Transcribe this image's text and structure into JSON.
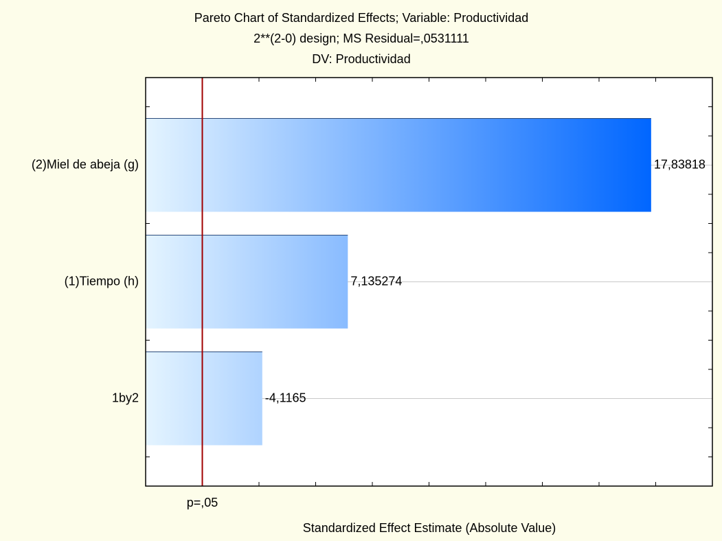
{
  "chart_data": {
    "type": "pareto",
    "title_lines": [
      "Pareto Chart of Standardized Effects; Variable: Productividad",
      "2**(2-0) design; MS Residual=,0531111",
      "DV: Productividad"
    ],
    "x_label": "Standardized Effect Estimate (Absolute Value)",
    "categories": [
      "(2)Miel de abeja (g)",
      "(1)Tiempo (h)",
      "1by2"
    ],
    "values": [
      17.83818,
      7.135274,
      -4.1165
    ],
    "value_labels": [
      "17,83818",
      "7,135274",
      "-4,1165"
    ],
    "color": "#0066ff",
    "xlim": [
      0,
      20
    ],
    "xticks": [
      0,
      2,
      4,
      6,
      8,
      10,
      12,
      14,
      16,
      18,
      20
    ],
    "reference": {
      "value": 2,
      "label": "p=,05",
      "color": "#a00000"
    },
    "grid": true
  }
}
